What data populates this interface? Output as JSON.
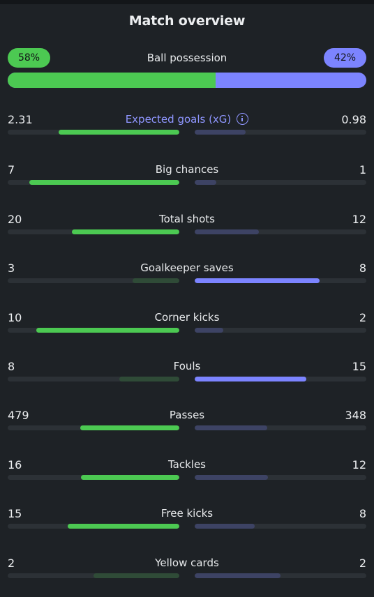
{
  "header": {
    "title": "Match overview"
  },
  "possession": {
    "label": "Ball possession",
    "home_label": "58%",
    "away_label": "42%",
    "home": 58,
    "away": 42
  },
  "colors": {
    "home_strong": "#4cc952",
    "home_weak": "#2f4b37",
    "away_strong": "#7c84ff",
    "away_weak": "#3d4364",
    "track": "#2c3136",
    "background": "#1e2226",
    "accent": "#8f96ff"
  },
  "stats": [
    {
      "label": "Expected goals (xG)",
      "home": "2.31",
      "away": "0.98",
      "accent": true,
      "icon": "info-icon"
    },
    {
      "label": "Big chances",
      "home": "7",
      "away": "1"
    },
    {
      "label": "Total shots",
      "home": "20",
      "away": "12"
    },
    {
      "label": "Goalkeeper saves",
      "home": "3",
      "away": "8"
    },
    {
      "label": "Corner kicks",
      "home": "10",
      "away": "2"
    },
    {
      "label": "Fouls",
      "home": "8",
      "away": "15"
    },
    {
      "label": "Passes",
      "home": "479",
      "away": "348"
    },
    {
      "label": "Tackles",
      "home": "16",
      "away": "12"
    },
    {
      "label": "Free kicks",
      "home": "15",
      "away": "8"
    },
    {
      "label": "Yellow cards",
      "home": "2",
      "away": "2"
    }
  ]
}
